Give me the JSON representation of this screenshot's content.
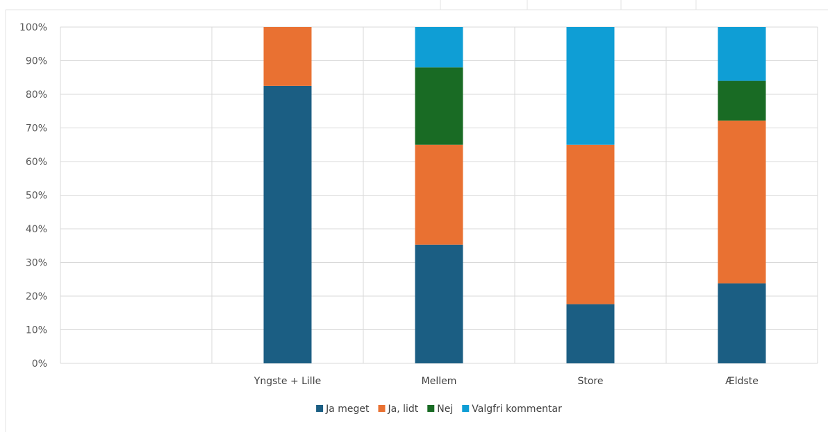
{
  "colors": {
    "grid": "#d9d9d9",
    "sheet_lines": "#e3e3e3"
  },
  "chart_data": {
    "type": "bar",
    "stacked": true,
    "percent_stacked": true,
    "categories": [
      "",
      "Yngste + Lille",
      "Mellem",
      "Store",
      "Ældste"
    ],
    "series": [
      {
        "name": "Ja meget",
        "color": "#1b5e83",
        "values": [
          0,
          82.5,
          35.3,
          17.6,
          23.8
        ]
      },
      {
        "name": "Ja, lidt",
        "color": "#e97132",
        "values": [
          0,
          17.5,
          29.7,
          47.4,
          48.4
        ]
      },
      {
        "name": "Nej",
        "color": "#196b24",
        "values": [
          0,
          0,
          23.0,
          0,
          11.8
        ]
      },
      {
        "name": "Valgfri kommentar",
        "color": "#0f9ed5",
        "values": [
          0,
          0,
          12.0,
          35.0,
          16.0
        ]
      }
    ],
    "ylim": [
      0,
      100
    ],
    "yticks": [
      "0%",
      "10%",
      "20%",
      "30%",
      "40%",
      "50%",
      "60%",
      "70%",
      "80%",
      "90%",
      "100%"
    ],
    "grid": true,
    "legend_position": "bottom",
    "title": "",
    "xlabel": "",
    "ylabel": ""
  }
}
